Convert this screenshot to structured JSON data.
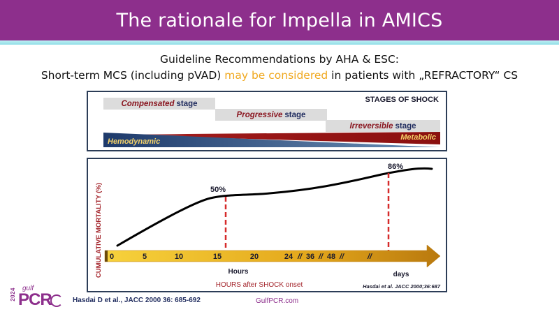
{
  "slide": {
    "title": "The rationale for Impella in AMICS",
    "subtitle_line1": "Guideline Recommendations by AHA & ESC:",
    "subtitle_line2_a": "Short-term MCS (including pVAD) ",
    "subtitle_line2_highlight": "may be considered",
    "subtitle_line2_b": " in patients with „REFRACTORY“ CS"
  },
  "stages_panel": {
    "title": "STAGES OF SHOCK",
    "stages": [
      {
        "em": "Compensated",
        "rest": "stage"
      },
      {
        "em": "Progressive",
        "rest": "stage"
      },
      {
        "em": "Irreversible",
        "rest": "stage"
      }
    ],
    "left_label": "Hemodynamic",
    "right_label": "Metabolic"
  },
  "chart_data": {
    "type": "line",
    "ylabel": "CUMULATIVE MORTALITY (%)",
    "xlabel": "HOURS after SHOCK onset",
    "x_tick_labels": [
      "0",
      "5",
      "10",
      "15",
      "20",
      "24",
      "//",
      "36",
      "//",
      "48",
      "//",
      "//"
    ],
    "x_unit_labels": [
      "Hours",
      "days"
    ],
    "annotations": [
      {
        "label": "50%",
        "at": "15"
      },
      {
        "label": "86%",
        "at": "days"
      }
    ],
    "source": "Hasdai et al. JACC 2000;36:687"
  },
  "footer": {
    "reference": "Hasdai D et al., JACC 2000 36: 685-692",
    "url": "GulfPCR.com",
    "logo_year": "2024",
    "logo_gulf": "gulf",
    "logo_pcr": "PCR"
  },
  "colors": {
    "title_bar": "#8d2f8c",
    "highlight": "#f0a81e",
    "dashed": "#d62b2b",
    "arrow": "#e0a21a"
  }
}
